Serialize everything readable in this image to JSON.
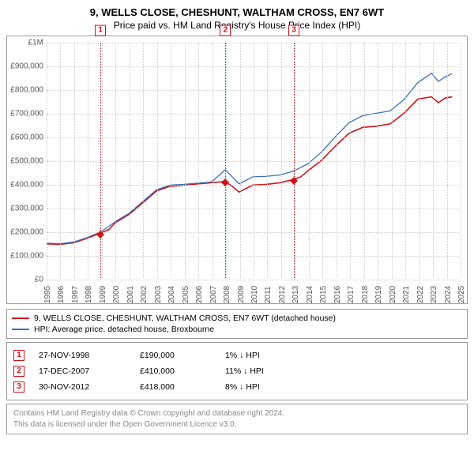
{
  "title": {
    "line1": "9, WELLS CLOSE, CHESHUNT, WALTHAM CROSS, EN7 6WT",
    "line2": "Price paid vs. HM Land Registry's House Price Index (HPI)"
  },
  "chart": {
    "type": "line",
    "background_color": "#ffffff",
    "grid_color": "#cccccc",
    "border_color": "#999999",
    "xlim": [
      1995,
      2025
    ],
    "ylim": [
      0,
      1000000
    ],
    "yticks": [
      0,
      100000,
      200000,
      300000,
      400000,
      500000,
      600000,
      700000,
      800000,
      900000,
      1000000
    ],
    "ytick_labels": [
      "£0",
      "£100,000",
      "£200,000",
      "£300,000",
      "£400,000",
      "£500,000",
      "£600,000",
      "£700,000",
      "£800,000",
      "£900,000",
      "£1M"
    ],
    "xticks": [
      1995,
      1996,
      1997,
      1998,
      1999,
      2000,
      2001,
      2002,
      2003,
      2004,
      2005,
      2006,
      2007,
      2008,
      2009,
      2010,
      2011,
      2012,
      2013,
      2014,
      2015,
      2016,
      2017,
      2018,
      2019,
      2020,
      2021,
      2022,
      2023,
      2024,
      2025
    ],
    "label_fontsize": 10,
    "series": [
      {
        "name": "property",
        "color": "#d0121b",
        "width": 1.6,
        "points": [
          [
            1995,
            145000
          ],
          [
            1996,
            143000
          ],
          [
            1997,
            150000
          ],
          [
            1998,
            170000
          ],
          [
            1998.9,
            190000
          ],
          [
            1999.5,
            205000
          ],
          [
            2000,
            235000
          ],
          [
            2001,
            270000
          ],
          [
            2002,
            320000
          ],
          [
            2003,
            370000
          ],
          [
            2004,
            390000
          ],
          [
            2005,
            395000
          ],
          [
            2006,
            400000
          ],
          [
            2007,
            405000
          ],
          [
            2007.96,
            410000
          ],
          [
            2008.5,
            390000
          ],
          [
            2009,
            365000
          ],
          [
            2010,
            395000
          ],
          [
            2011,
            398000
          ],
          [
            2012,
            405000
          ],
          [
            2012.92,
            418000
          ],
          [
            2013.5,
            430000
          ],
          [
            2014,
            455000
          ],
          [
            2015,
            500000
          ],
          [
            2016,
            560000
          ],
          [
            2017,
            615000
          ],
          [
            2018,
            640000
          ],
          [
            2019,
            645000
          ],
          [
            2020,
            655000
          ],
          [
            2021,
            700000
          ],
          [
            2022,
            760000
          ],
          [
            2023,
            770000
          ],
          [
            2023.5,
            745000
          ],
          [
            2024,
            765000
          ],
          [
            2024.5,
            770000
          ]
        ]
      },
      {
        "name": "hpi",
        "color": "#3b6fb6",
        "width": 1.3,
        "points": [
          [
            1995,
            148000
          ],
          [
            1996,
            146000
          ],
          [
            1997,
            153000
          ],
          [
            1998,
            173000
          ],
          [
            1999,
            198000
          ],
          [
            2000,
            240000
          ],
          [
            2001,
            275000
          ],
          [
            2002,
            325000
          ],
          [
            2003,
            375000
          ],
          [
            2004,
            395000
          ],
          [
            2005,
            398000
          ],
          [
            2006,
            403000
          ],
          [
            2007,
            408000
          ],
          [
            2008,
            460000
          ],
          [
            2008.5,
            430000
          ],
          [
            2009,
            400000
          ],
          [
            2010,
            430000
          ],
          [
            2011,
            432000
          ],
          [
            2012,
            438000
          ],
          [
            2013,
            455000
          ],
          [
            2014,
            485000
          ],
          [
            2015,
            535000
          ],
          [
            2016,
            600000
          ],
          [
            2017,
            660000
          ],
          [
            2018,
            690000
          ],
          [
            2019,
            700000
          ],
          [
            2020,
            710000
          ],
          [
            2021,
            758000
          ],
          [
            2022,
            830000
          ],
          [
            2023,
            870000
          ],
          [
            2023.5,
            835000
          ],
          [
            2024,
            855000
          ],
          [
            2024.5,
            868000
          ]
        ]
      }
    ],
    "markers": [
      {
        "n": "1",
        "x": 1998.9,
        "y": 190000,
        "color": "#d0121b"
      },
      {
        "n": "2",
        "x": 2007.96,
        "y": 410000,
        "color": "#d0121b"
      },
      {
        "n": "3",
        "x": 2012.92,
        "y": 418000,
        "color": "#d0121b"
      }
    ]
  },
  "legend": {
    "items": [
      {
        "color": "#d0121b",
        "label": "9, WELLS CLOSE, CHESHUNT, WALTHAM CROSS, EN7 6WT (detached house)"
      },
      {
        "color": "#3b6fb6",
        "label": "HPI: Average price, detached house, Broxbourne"
      }
    ]
  },
  "events": [
    {
      "n": "1",
      "date": "27-NOV-1998",
      "price": "£190,000",
      "hpi": "1% ↓ HPI"
    },
    {
      "n": "2",
      "date": "17-DEC-2007",
      "price": "£410,000",
      "hpi": "11% ↓ HPI"
    },
    {
      "n": "3",
      "date": "30-NOV-2012",
      "price": "£418,000",
      "hpi": "8% ↓ HPI"
    }
  ],
  "footer": {
    "line1": "Contains HM Land Registry data © Crown copyright and database right 2024.",
    "line2": "This data is licensed under the Open Government Licence v3.0."
  }
}
